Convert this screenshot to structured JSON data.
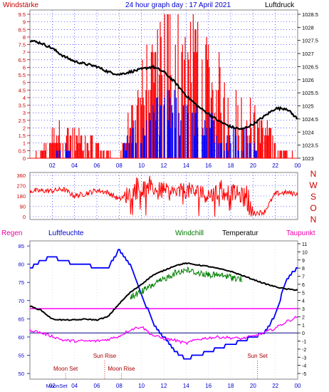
{
  "top": {
    "title": "24 hour graph day : 17 April 2021",
    "left_label": "Windstärke",
    "right_label": "Luftdruck",
    "left_ticks": [
      "0",
      "0.5",
      "1",
      "1.5",
      "2",
      "2.5",
      "3",
      "3.5",
      "4",
      "4.5",
      "5",
      "5.5",
      "6",
      "6.5",
      "7",
      "7.5",
      "8",
      "8.5",
      "9",
      "9.5"
    ],
    "right_ticks": [
      "1023",
      "1023.5",
      "1024",
      "1024.5",
      "1025",
      "1025.5",
      "1026",
      "1026.5",
      "1027",
      "1027.5",
      "1028",
      "1028.5"
    ],
    "x_ticks": [
      "02",
      "04",
      "06",
      "08",
      "10",
      "12",
      "14",
      "16",
      "18",
      "20",
      "22",
      "00"
    ]
  },
  "middle": {
    "y_ticks": [
      "0",
      "90",
      "180",
      "270",
      "360"
    ],
    "compass": [
      "N",
      "W",
      "S",
      "O",
      "N"
    ]
  },
  "bottom": {
    "labels": {
      "regen": "Regen",
      "luftfeuchte": "Luftfeuchte",
      "windchill": "Windchill",
      "temperatur": "Temperatur",
      "taupunkt": "Taupunkt"
    },
    "left_ticks": [
      "50",
      "55",
      "60",
      "65",
      "70",
      "75",
      "80",
      "85"
    ],
    "right_ticks": [
      "-5",
      "-4",
      "-3",
      "-2",
      "-1",
      "0",
      "1",
      "2",
      "3",
      "4",
      "5",
      "6",
      "7",
      "8",
      "9",
      "10",
      "11"
    ],
    "x_ticks": [
      "02",
      "04",
      "06",
      "08",
      "10",
      "12",
      "14",
      "16",
      "18",
      "20",
      "22",
      "00"
    ],
    "moonset_x_label": "MoonSet",
    "events": [
      {
        "label": "Moon Set",
        "time": 3.2
      },
      {
        "label": "Sun Rise",
        "time": 6.7
      },
      {
        "label": "Moon Rise",
        "time": 8.2
      },
      {
        "label": "Sun Set",
        "time": 20.4
      }
    ]
  },
  "colors": {
    "wind": "#ff0000",
    "gust": "#0000ff",
    "pressure": "#000000",
    "humidity": "#0000ff",
    "windchill": "#008000",
    "temperature": "#000000",
    "dewpoint": "#ff00ff",
    "zero_line": "#000080",
    "label_blue": "#0000cc",
    "label_red": "#cc0000",
    "label_green": "#007700",
    "label_magenta": "#ee00aa",
    "axis_gray": "#808080",
    "grid": "#0000ff",
    "event_text": "#aa0000"
  },
  "chart_data": [
    {
      "type": "line",
      "x_unit": "hour",
      "xlim": [
        0,
        24
      ],
      "series": [
        {
          "axis": "right",
          "ylim": [
            1023,
            1028.5
          ],
          "x": [
            0,
            1,
            2,
            3,
            4,
            5,
            6,
            7,
            8,
            9,
            10,
            11,
            12,
            13,
            14,
            15,
            16,
            17,
            18,
            19,
            20,
            21,
            22,
            23,
            24
          ],
          "values": [
            1027.5,
            1027.4,
            1027.2,
            1026.9,
            1026.7,
            1026.6,
            1026.5,
            1026.3,
            1026.2,
            1026.3,
            1026.4,
            1026.5,
            1026.3,
            1025.9,
            1025.4,
            1025.0,
            1024.7,
            1024.4,
            1024.2,
            1024.1,
            1024.3,
            1024.6,
            1024.9,
            1024.9,
            1024.5
          ]
        },
        {
          "axis": "left",
          "ylim": [
            0,
            9.5
          ],
          "kind": "bars",
          "x": [
            0,
            1,
            2,
            3,
            4,
            5,
            6,
            7,
            8,
            9,
            10,
            11,
            12,
            13,
            14,
            15,
            16,
            17,
            18,
            19,
            20,
            21,
            22,
            23,
            24
          ],
          "values": [
            0,
            0.5,
            1.5,
            2,
            1.5,
            1.5,
            1,
            0.5,
            0,
            3,
            5,
            7,
            9.5,
            9,
            8,
            8.5,
            6,
            5.5,
            4,
            3.5,
            3,
            2,
            1.5,
            0.5,
            0
          ]
        },
        {
          "axis": "left",
          "ylim": [
            0,
            9.5
          ],
          "kind": "bars",
          "x": [
            0,
            1,
            2,
            3,
            4,
            5,
            6,
            7,
            8,
            9,
            10,
            11,
            12,
            13,
            14,
            15,
            16,
            17,
            18,
            19,
            20,
            21,
            22,
            23,
            24
          ],
          "values": [
            0,
            0,
            0,
            1.5,
            0,
            0,
            0,
            0,
            0,
            2,
            2,
            3,
            4,
            4,
            3,
            3,
            3,
            2,
            1.5,
            2,
            1,
            0,
            0,
            0,
            0
          ]
        }
      ]
    },
    {
      "type": "scatter",
      "x_unit": "hour",
      "xlim": [
        0,
        24
      ],
      "ylim": [
        0,
        360
      ],
      "series": [
        {
          "x": [
            0,
            1,
            2,
            3,
            4,
            5,
            6,
            7,
            8,
            9,
            10,
            11,
            12,
            13,
            14,
            15,
            16,
            17,
            18,
            19,
            20,
            21,
            22,
            23,
            24
          ],
          "values": [
            225,
            225,
            225,
            240,
            180,
            200,
            230,
            210,
            150,
            210,
            230,
            250,
            220,
            200,
            230,
            210,
            190,
            200,
            220,
            180,
            30,
            40,
            200,
            210,
            200
          ]
        }
      ]
    },
    {
      "type": "line",
      "x_unit": "hour",
      "xlim": [
        0,
        24
      ],
      "series": [
        {
          "axis": "left",
          "ylim": [
            50,
            86
          ],
          "x": [
            0,
            1,
            2,
            3,
            4,
            5,
            6,
            7,
            8,
            9,
            10,
            11,
            12,
            13,
            14,
            15,
            16,
            17,
            18,
            19,
            20,
            21,
            22,
            23,
            24
          ],
          "values": [
            79,
            81,
            82,
            81,
            80,
            80,
            79,
            79,
            84,
            80,
            72,
            64,
            60,
            56,
            54,
            55,
            56,
            57,
            58,
            59,
            60,
            61,
            66,
            76,
            79
          ]
        },
        {
          "axis": "right",
          "ylim": [
            -5,
            11
          ],
          "x": [
            0,
            1,
            2,
            3,
            4,
            5,
            6,
            7,
            8,
            9,
            10,
            11,
            12,
            13,
            14,
            15,
            16,
            17,
            18,
            19,
            20,
            21,
            22,
            23,
            24
          ],
          "values": [
            3.3,
            2.8,
            1.7,
            1.6,
            1.6,
            1.7,
            1.6,
            2.0,
            3.6,
            5.0,
            6.0,
            7.1,
            7.7,
            8.3,
            8.6,
            8.4,
            8.2,
            7.9,
            7.6,
            7.1,
            6.6,
            6.1,
            5.7,
            5.4,
            5.3
          ]
        },
        {
          "axis": "right",
          "ylim": [
            -5,
            11
          ],
          "x": [
            9,
            10,
            11,
            12,
            13,
            14,
            15,
            16,
            17,
            18,
            19
          ],
          "values": [
            4.8,
            5.5,
            6.3,
            7.0,
            7.8,
            8.2,
            7.8,
            7.6,
            7.5,
            7.3,
            7.0
          ]
        },
        {
          "axis": "right",
          "ylim": [
            -5,
            11
          ],
          "x": [
            0,
            1,
            2,
            3,
            4,
            5,
            6,
            7,
            8,
            9,
            10,
            11,
            12,
            13,
            14,
            15,
            16,
            17,
            18,
            19,
            20,
            21,
            22,
            23,
            24
          ],
          "values": [
            0.4,
            0.0,
            -0.4,
            -0.9,
            -1.0,
            -1.0,
            -1.0,
            -0.8,
            -0.4,
            0.4,
            0.8,
            -0.3,
            -0.7,
            -0.9,
            -1.3,
            -0.8,
            -0.6,
            -0.5,
            -0.6,
            -0.7,
            -0.4,
            0.0,
            0.6,
            1.4,
            2.0
          ]
        }
      ]
    }
  ]
}
